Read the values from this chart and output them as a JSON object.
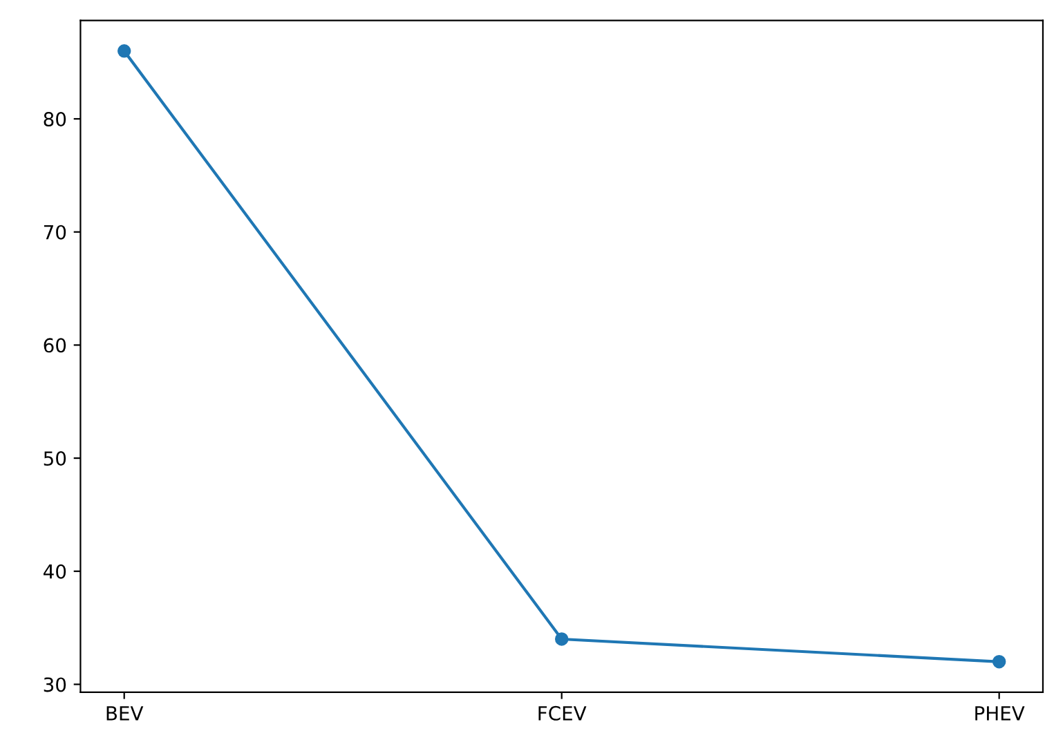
{
  "chart_data": {
    "type": "line",
    "categories": [
      "BEV",
      "FCEV",
      "PHEV"
    ],
    "series": [
      {
        "color": "#1f77b4",
        "values": [
          86,
          34,
          32
        ]
      }
    ],
    "ylim": [
      29.3,
      88.7
    ],
    "yticks": [
      30,
      40,
      50,
      60,
      70,
      80
    ],
    "marker": "circle",
    "line_style": "solid",
    "grid": false
  }
}
